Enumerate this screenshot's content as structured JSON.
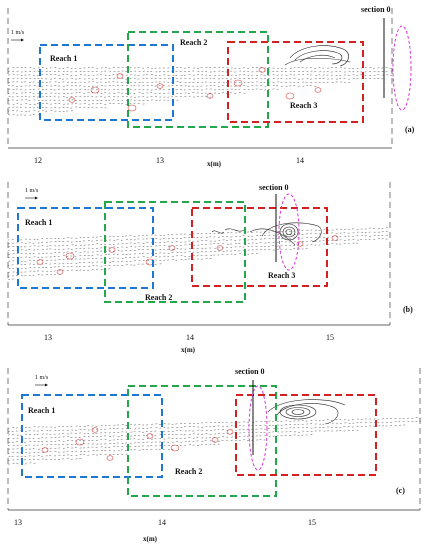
{
  "panels": [
    {
      "id": "a",
      "panel_label": "(a)",
      "scale_label": "1 m/s",
      "axis_label": "x(m)",
      "ticks": [
        "12",
        "13",
        "14"
      ],
      "section_label": "section 0",
      "reaches": [
        {
          "label": "Reach 1",
          "color": "#1f77d4"
        },
        {
          "label": "Reach 2",
          "color": "#22a84a"
        },
        {
          "label": "Reach 3",
          "color": "#d42020"
        }
      ]
    },
    {
      "id": "b",
      "panel_label": "(b)",
      "scale_label": "1 m/s",
      "axis_label": "x(m)",
      "ticks": [
        "13",
        "14",
        "15"
      ],
      "section_label": "section 0",
      "reaches": [
        {
          "label": "Reach 1",
          "color": "#1f77d4"
        },
        {
          "label": "Reach 2",
          "color": "#22a84a"
        },
        {
          "label": "Reach 3",
          "color": "#d42020"
        }
      ]
    },
    {
      "id": "c",
      "panel_label": "(c)",
      "scale_label": "1 m/s",
      "axis_label": "x(m)",
      "ticks": [
        "13",
        "14",
        "15"
      ],
      "section_label": "section 0",
      "reaches": [
        {
          "label": "Reach 1",
          "color": "#1f77d4"
        },
        {
          "label": "Reach 2",
          "color": "#22a84a"
        }
      ]
    }
  ],
  "colors": {
    "flow_vectors": "#555555",
    "eddies": "#d94a4a",
    "ellipse": "#d63cd6",
    "contours": "#222222"
  }
}
